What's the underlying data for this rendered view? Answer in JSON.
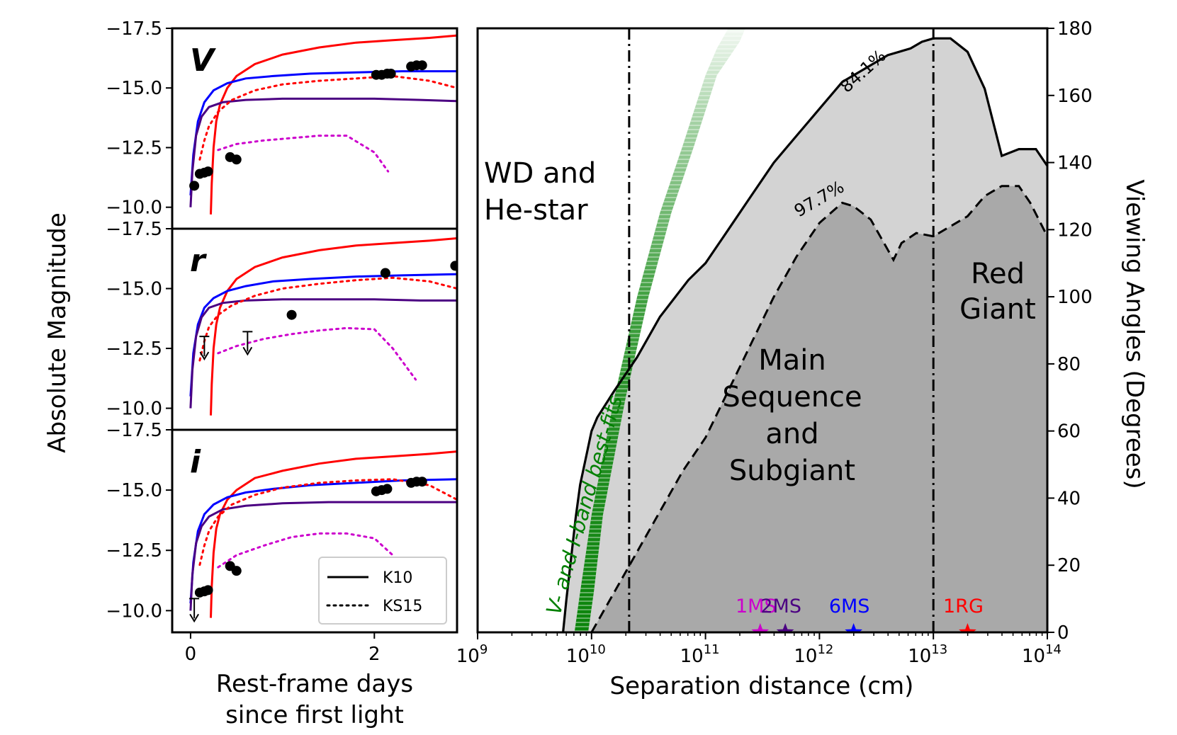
{
  "colors": {
    "red": "#ff0000",
    "blue": "#0000ff",
    "purple": "#4b0082",
    "magenta": "#cc00cc",
    "green": "#008000",
    "light_fill": "#d3d3d3",
    "dark_fill": "#a9a9a9"
  },
  "chart_data": [
    {
      "type": "line",
      "title": "",
      "ylabel": "Absolute Magnitude",
      "xlabel": "Rest-frame days since first light",
      "xlabel_lines": [
        "Rest-frame days",
        "since first light"
      ],
      "xlim": [
        -0.2,
        2.9
      ],
      "xticks": [
        {
          "v": 0,
          "label": "0"
        },
        {
          "v": 2,
          "label": "2"
        }
      ],
      "ylim": [
        -9.1,
        -17.5
      ],
      "yticks": [
        {
          "v": -17.5,
          "label": "−17.5"
        },
        {
          "v": -15.0,
          "label": "−15.0"
        },
        {
          "v": -12.5,
          "label": "−12.5"
        },
        {
          "v": -10.0,
          "label": "−10.0"
        }
      ],
      "legend": {
        "placement": "lower-right",
        "entries": [
          {
            "label": "K10",
            "style": "solid"
          },
          {
            "label": "KS15",
            "style": "dotted"
          }
        ]
      },
      "panels": [
        {
          "band": "V",
          "series": [
            {
              "name": "K10 red",
              "color": "red",
              "style": "solid",
              "x": [
                0.22,
                0.23,
                0.25,
                0.28,
                0.32,
                0.4,
                0.5,
                0.7,
                1.0,
                1.4,
                1.8,
                2.2,
                2.6,
                2.9
              ],
              "y": [
                -9.7,
                -11.0,
                -12.5,
                -13.6,
                -14.3,
                -15.0,
                -15.5,
                -16.0,
                -16.4,
                -16.7,
                -16.9,
                -17.0,
                -17.1,
                -17.2
              ]
            },
            {
              "name": "K10 blue",
              "color": "blue",
              "style": "solid",
              "x": [
                0.0,
                0.03,
                0.08,
                0.15,
                0.25,
                0.4,
                0.6,
                0.9,
                1.3,
                1.8,
                2.3,
                2.9
              ],
              "y": [
                -10.5,
                -12.2,
                -13.6,
                -14.4,
                -14.9,
                -15.2,
                -15.4,
                -15.5,
                -15.6,
                -15.65,
                -15.7,
                -15.7
              ]
            },
            {
              "name": "K10 purple",
              "color": "purple",
              "style": "solid",
              "x": [
                0.0,
                0.02,
                0.06,
                0.12,
                0.2,
                0.35,
                0.6,
                1.0,
                1.5,
                2.0,
                2.5,
                2.9
              ],
              "y": [
                -10.0,
                -11.5,
                -13.0,
                -13.8,
                -14.2,
                -14.4,
                -14.5,
                -14.55,
                -14.55,
                -14.55,
                -14.5,
                -14.45
              ]
            },
            {
              "name": "KS15 red",
              "color": "red",
              "style": "dotted",
              "x": [
                0.1,
                0.15,
                0.2,
                0.3,
                0.45,
                0.7,
                1.0,
                1.4,
                1.8,
                2.2,
                2.6,
                2.9
              ],
              "y": [
                -12.0,
                -12.8,
                -13.4,
                -14.0,
                -14.5,
                -14.9,
                -15.15,
                -15.3,
                -15.4,
                -15.5,
                -15.3,
                -15.0
              ]
            },
            {
              "name": "KS15 magenta",
              "color": "magenta",
              "style": "dotted",
              "x": [
                0.3,
                0.5,
                0.8,
                1.1,
                1.4,
                1.7,
                2.0,
                2.15
              ],
              "y": [
                -12.4,
                -12.65,
                -12.8,
                -12.9,
                -13.0,
                -13.0,
                -12.3,
                -11.5
              ]
            }
          ],
          "points": {
            "x": [
              0.04,
              0.1,
              0.15,
              0.19,
              0.43,
              0.5,
              2.02,
              2.08,
              2.14,
              2.18,
              2.4,
              2.46,
              2.52
            ],
            "y": [
              -10.9,
              -11.4,
              -11.45,
              -11.5,
              -12.1,
              -12.0,
              -15.55,
              -15.55,
              -15.6,
              -15.6,
              -15.9,
              -15.95,
              -15.95
            ]
          },
          "upper_limits": []
        },
        {
          "band": "r",
          "series": [
            {
              "name": "K10 red",
              "color": "red",
              "style": "solid",
              "x": [
                0.22,
                0.23,
                0.25,
                0.28,
                0.32,
                0.4,
                0.5,
                0.7,
                1.0,
                1.4,
                1.8,
                2.2,
                2.6,
                2.9
              ],
              "y": [
                -9.7,
                -11.0,
                -12.5,
                -13.5,
                -14.2,
                -14.9,
                -15.4,
                -15.9,
                -16.3,
                -16.6,
                -16.8,
                -16.9,
                -17.0,
                -17.1
              ]
            },
            {
              "name": "K10 blue",
              "color": "blue",
              "style": "solid",
              "x": [
                0.0,
                0.03,
                0.08,
                0.15,
                0.25,
                0.4,
                0.6,
                0.9,
                1.3,
                1.8,
                2.3,
                2.9
              ],
              "y": [
                -10.5,
                -12.3,
                -13.5,
                -14.2,
                -14.6,
                -14.9,
                -15.1,
                -15.3,
                -15.4,
                -15.5,
                -15.55,
                -15.6
              ]
            },
            {
              "name": "K10 purple",
              "color": "purple",
              "style": "solid",
              "x": [
                0.0,
                0.02,
                0.06,
                0.12,
                0.2,
                0.35,
                0.6,
                1.0,
                1.5,
                2.0,
                2.5,
                2.9
              ],
              "y": [
                -10.0,
                -11.6,
                -13.0,
                -13.8,
                -14.2,
                -14.4,
                -14.5,
                -14.55,
                -14.55,
                -14.55,
                -14.5,
                -14.5
              ]
            },
            {
              "name": "KS15 red",
              "color": "red",
              "style": "dotted",
              "x": [
                0.1,
                0.15,
                0.2,
                0.3,
                0.45,
                0.7,
                1.0,
                1.4,
                1.8,
                2.2,
                2.6,
                2.9
              ],
              "y": [
                -12.0,
                -12.8,
                -13.4,
                -13.9,
                -14.3,
                -14.7,
                -15.0,
                -15.2,
                -15.35,
                -15.45,
                -15.3,
                -15.0
              ]
            },
            {
              "name": "KS15 magenta",
              "color": "magenta",
              "style": "dotted",
              "x": [
                0.3,
                0.5,
                0.8,
                1.1,
                1.4,
                1.7,
                2.0,
                2.2,
                2.45
              ],
              "y": [
                -12.3,
                -12.6,
                -12.9,
                -13.1,
                -13.25,
                -13.35,
                -13.3,
                -12.5,
                -11.2
              ]
            }
          ],
          "points": {
            "x": [
              1.1,
              2.12,
              2.88
            ],
            "y": [
              -13.9,
              -15.65,
              -15.95
            ]
          },
          "upper_limits": [
            {
              "x": 0.15,
              "y": -13.0
            },
            {
              "x": 0.62,
              "y": -13.2
            }
          ]
        },
        {
          "band": "i",
          "series": [
            {
              "name": "K10 red",
              "color": "red",
              "style": "solid",
              "x": [
                0.22,
                0.23,
                0.25,
                0.28,
                0.32,
                0.4,
                0.5,
                0.7,
                1.0,
                1.4,
                1.8,
                2.2,
                2.6,
                2.9
              ],
              "y": [
                -9.7,
                -11.0,
                -12.4,
                -13.4,
                -14.0,
                -14.6,
                -15.0,
                -15.5,
                -15.8,
                -16.1,
                -16.3,
                -16.4,
                -16.5,
                -16.6
              ]
            },
            {
              "name": "K10 blue",
              "color": "blue",
              "style": "solid",
              "x": [
                0.0,
                0.03,
                0.08,
                0.15,
                0.25,
                0.4,
                0.6,
                0.9,
                1.3,
                1.8,
                2.3,
                2.9
              ],
              "y": [
                -10.3,
                -12.0,
                -13.3,
                -14.0,
                -14.4,
                -14.7,
                -14.9,
                -15.05,
                -15.2,
                -15.3,
                -15.4,
                -15.45
              ]
            },
            {
              "name": "K10 purple",
              "color": "purple",
              "style": "solid",
              "x": [
                0.0,
                0.02,
                0.06,
                0.12,
                0.2,
                0.35,
                0.6,
                1.0,
                1.5,
                2.0,
                2.5,
                2.9
              ],
              "y": [
                -10.0,
                -11.5,
                -12.8,
                -13.5,
                -13.9,
                -14.2,
                -14.35,
                -14.45,
                -14.5,
                -14.5,
                -14.5,
                -14.5
              ]
            },
            {
              "name": "KS15 red",
              "color": "red",
              "style": "dotted",
              "x": [
                0.1,
                0.15,
                0.2,
                0.3,
                0.45,
                0.7,
                1.0,
                1.4,
                1.8,
                2.2,
                2.6,
                2.9
              ],
              "y": [
                -11.9,
                -12.7,
                -13.3,
                -13.9,
                -14.4,
                -14.8,
                -15.1,
                -15.3,
                -15.4,
                -15.45,
                -15.2,
                -14.6
              ]
            },
            {
              "name": "KS15 magenta",
              "color": "magenta",
              "style": "dotted",
              "x": [
                0.3,
                0.5,
                0.8,
                1.1,
                1.4,
                1.7,
                2.0,
                2.2,
                2.45
              ],
              "y": [
                -11.8,
                -12.3,
                -12.7,
                -13.05,
                -13.2,
                -13.2,
                -13.0,
                -12.3,
                -10.8
              ]
            }
          ],
          "points": {
            "x": [
              0.1,
              0.15,
              0.19,
              0.43,
              0.5,
              2.02,
              2.08,
              2.14,
              2.4,
              2.46,
              2.52
            ],
            "y": [
              -10.75,
              -10.8,
              -10.85,
              -11.85,
              -11.65,
              -14.95,
              -15.0,
              -15.05,
              -15.3,
              -15.35,
              -15.35
            ]
          },
          "upper_limits": [
            {
              "x": 0.04,
              "y": -10.5
            }
          ]
        }
      ]
    },
    {
      "type": "area",
      "title": "",
      "xlabel": "Separation distance (cm)",
      "ylabel": "Viewing Angles (Degrees)",
      "xscale": "log",
      "xlim_log10": [
        9,
        14
      ],
      "ylim": [
        0,
        180
      ],
      "xticks": [
        {
          "v": 9,
          "base": "10",
          "exp": "9"
        },
        {
          "v": 10,
          "base": "10",
          "exp": "10"
        },
        {
          "v": 11,
          "base": "10",
          "exp": "11"
        },
        {
          "v": 12,
          "base": "10",
          "exp": "12"
        },
        {
          "v": 13,
          "base": "10",
          "exp": "13"
        },
        {
          "v": 14,
          "base": "10",
          "exp": "14"
        }
      ],
      "yticks": [
        {
          "v": 0,
          "label": "0"
        },
        {
          "v": 20,
          "label": "20"
        },
        {
          "v": 40,
          "label": "40"
        },
        {
          "v": 60,
          "label": "60"
        },
        {
          "v": 80,
          "label": "80"
        },
        {
          "v": 100,
          "label": "100"
        },
        {
          "v": 120,
          "label": "120"
        },
        {
          "v": 140,
          "label": "140"
        },
        {
          "v": 160,
          "label": "160"
        },
        {
          "v": 180,
          "label": "180"
        }
      ],
      "contour_841": {
        "label": "84.1%",
        "log10x": [
          9.75,
          9.78,
          9.82,
          9.86,
          9.9,
          9.95,
          10.0,
          10.05,
          10.2,
          10.4,
          10.6,
          10.85,
          11.0,
          11.2,
          11.4,
          11.6,
          11.8,
          12.0,
          12.2,
          12.4,
          12.6,
          12.8,
          12.9,
          13.0,
          13.05,
          13.15,
          13.3,
          13.45,
          13.6,
          13.75,
          13.9,
          14.0
        ],
        "y": [
          0,
          10,
          22,
          34,
          44,
          52,
          60,
          64,
          72,
          82,
          94,
          105,
          110,
          120,
          130,
          140,
          148,
          156,
          164,
          168,
          172,
          174,
          176,
          177,
          177,
          177,
          173,
          162,
          142,
          144,
          144,
          139
        ]
      },
      "contour_977": {
        "label": "97.7%",
        "log10x": [
          10.0,
          10.2,
          10.4,
          10.6,
          10.8,
          11.0,
          11.2,
          11.4,
          11.6,
          11.8,
          11.9,
          12.0,
          12.1,
          12.2,
          12.3,
          12.45,
          12.6,
          12.65,
          12.72,
          12.85,
          13.0,
          13.15,
          13.3,
          13.45,
          13.6,
          13.75,
          13.85,
          14.0
        ],
        "y": [
          0,
          12,
          24,
          36,
          48,
          58,
          72,
          86,
          100,
          112,
          117,
          122,
          125,
          128,
          127,
          123,
          114,
          111,
          116,
          119,
          118,
          121,
          124,
          130,
          133,
          133,
          128,
          118
        ]
      },
      "band": {
        "label": "V- and I-band best-fits",
        "upper_log10x": [
          9.85,
          9.9,
          10.0,
          10.2,
          10.4,
          10.6,
          10.8,
          11.0,
          11.1,
          11.2
        ],
        "upper_y": [
          0,
          12,
          35,
          70,
          100,
          125,
          145,
          166,
          174,
          180
        ],
        "lower_log10x": [
          9.97,
          10.02,
          10.1,
          10.3,
          10.5,
          10.7,
          10.9,
          11.1,
          11.3,
          11.35
        ],
        "lower_y": [
          0,
          12,
          35,
          70,
          100,
          125,
          145,
          166,
          176,
          180
        ]
      },
      "vlines": [
        {
          "log10x": 10.33
        },
        {
          "log10x": 13.0
        }
      ],
      "regions": [
        {
          "lines": [
            "WD and",
            "He-star"
          ]
        },
        {
          "lines": [
            "Main",
            "Sequence",
            "and",
            "Subgiant"
          ]
        },
        {
          "lines": [
            "Red",
            "Giant"
          ]
        }
      ],
      "markers": [
        {
          "label": "1MS",
          "log10x": 11.48,
          "color": "magenta"
        },
        {
          "label": "2MS",
          "log10x": 11.7,
          "color": "purple"
        },
        {
          "label": "6MS",
          "log10x": 12.3,
          "color": "blue"
        },
        {
          "label": "1RG",
          "log10x": 13.3,
          "color": "red"
        }
      ]
    }
  ]
}
